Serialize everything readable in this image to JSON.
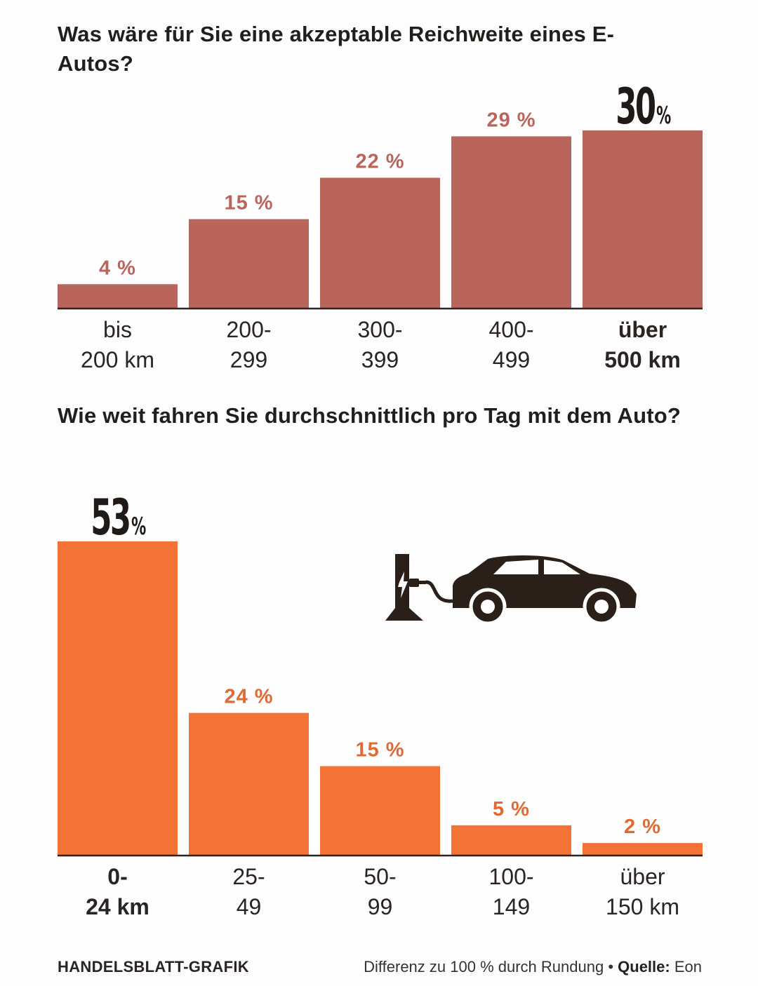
{
  "chart_data": [
    {
      "type": "bar",
      "title": "Was wäre für Sie eine akzeptable Reichweite eines E-Autos?",
      "categories": [
        [
          "bis",
          "200 km"
        ],
        [
          "200-",
          "299"
        ],
        [
          "300-",
          "399"
        ],
        [
          "400-",
          "499"
        ],
        [
          "über",
          "500 km"
        ]
      ],
      "values": [
        4,
        15,
        22,
        29,
        30
      ],
      "value_labels": [
        "4 %",
        "15 %",
        "22 %",
        "29 %",
        "30"
      ],
      "highlight_index": 4,
      "highlight_suffix": "%",
      "color": "#b9655c",
      "label_color": "#b9655c",
      "ylim": [
        0,
        30
      ]
    },
    {
      "type": "bar",
      "title": "Wie weit fahren Sie durchschnittlich pro Tag mit dem Auto?",
      "categories": [
        [
          "0-",
          "24 km"
        ],
        [
          "25-",
          "49"
        ],
        [
          "50-",
          "99"
        ],
        [
          "100-",
          "149"
        ],
        [
          "über",
          "150 km"
        ]
      ],
      "values": [
        53,
        24,
        15,
        5,
        2
      ],
      "value_labels": [
        "53",
        "24 %",
        "15 %",
        "5 %",
        "2 %"
      ],
      "highlight_index": 0,
      "highlight_suffix": "%",
      "color": "#f37336",
      "label_color": "#e06a32",
      "ylim": [
        0,
        53
      ]
    }
  ],
  "footer": {
    "credit": "HANDELSBLATT-GRAFIK",
    "note": "Differenz zu 100 % durch Rundung",
    "separator": "•",
    "source_label": "Quelle:",
    "source": "Eon"
  },
  "icons": [
    "charging-station-icon",
    "car-icon"
  ],
  "colors": {
    "text": "#221e1b",
    "chart1_bar": "#b9655c",
    "chart2_bar": "#f37336",
    "axis": "#2a2522"
  }
}
